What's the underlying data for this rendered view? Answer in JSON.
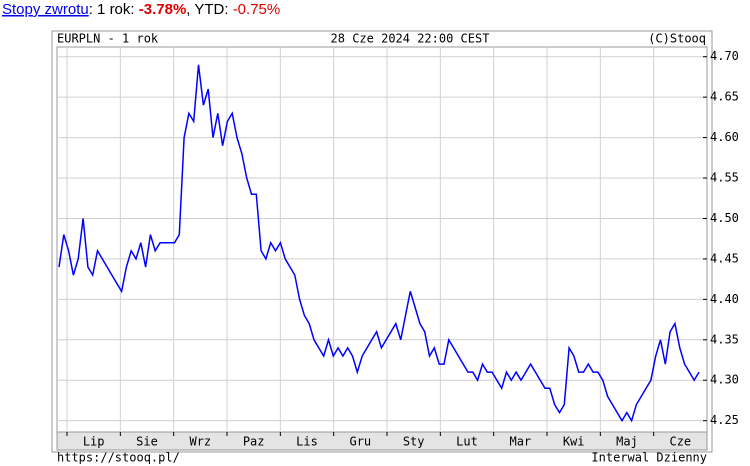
{
  "returns": [
    "Stopy zwrotu",
    ": 1 rok: ",
    "-3.78%",
    ", YTD: ",
    "-0.75%"
  ],
  "chart_data": {
    "type": "line",
    "title": "EURPLN - 1 rok",
    "subtitle": "28 Cze 2024 22:00 CEST",
    "credit": "(C)Stooq",
    "xticks": [
      "Lip",
      "Sie",
      "Wrz",
      "Paz",
      "Lis",
      "Gru",
      "Sty",
      "Lut",
      "Mar",
      "Kwi",
      "Maj",
      "Cze"
    ],
    "color": "#0000ff",
    "grid": true,
    "ylim": [
      4.236,
      4.712
    ],
    "yticks": [
      4.25,
      {
        "value": 4.3,
        "label": "4.30"
      },
      4.35,
      {
        "value": 4.4,
        "label": "4.40"
      },
      4.45,
      {
        "value": 4.5,
        "label": "4.50"
      },
      4.55,
      {
        "value": 4.6,
        "label": "4.60"
      },
      4.65,
      {
        "value": 4.7,
        "label": "4.70"
      }
    ],
    "values": [
      4.44,
      4.48,
      4.46,
      4.43,
      4.45,
      4.5,
      4.44,
      4.43,
      4.46,
      4.45,
      4.44,
      4.43,
      4.42,
      4.41,
      4.44,
      4.46,
      4.45,
      4.47,
      4.44,
      4.48,
      4.46,
      4.47,
      4.47,
      4.47,
      4.47,
      4.48,
      4.6,
      4.63,
      4.62,
      4.69,
      4.64,
      4.66,
      4.6,
      4.63,
      4.59,
      4.62,
      4.63,
      4.6,
      4.58,
      4.55,
      4.53,
      4.53,
      4.46,
      4.45,
      4.47,
      4.46,
      4.47,
      4.45,
      4.44,
      4.43,
      4.4,
      4.38,
      4.37,
      4.35,
      4.34,
      4.33,
      4.35,
      4.33,
      4.34,
      4.33,
      4.34,
      4.33,
      4.31,
      4.33,
      4.34,
      4.35,
      4.36,
      4.34,
      4.35,
      4.36,
      4.37,
      4.35,
      4.38,
      4.41,
      4.39,
      4.37,
      4.36,
      4.33,
      4.34,
      4.32,
      4.32,
      4.35,
      4.34,
      4.33,
      4.32,
      4.31,
      4.31,
      4.3,
      4.32,
      4.31,
      4.31,
      4.3,
      4.29,
      4.31,
      4.3,
      4.31,
      4.3,
      4.31,
      4.32,
      4.31,
      4.3,
      4.29,
      4.29,
      4.27,
      4.26,
      4.27,
      4.34,
      4.33,
      4.31,
      4.31,
      4.32,
      4.31,
      4.31,
      4.3,
      4.28,
      4.27,
      4.26,
      4.25,
      4.26,
      4.25,
      4.27,
      4.28,
      4.29,
      4.3,
      4.33,
      4.35,
      4.32,
      4.36,
      4.37,
      4.34,
      4.32,
      4.31,
      4.3,
      4.31
    ]
  },
  "footer": {
    "left": "https://stooq.pl/",
    "right": "Interwal Dzienny"
  }
}
